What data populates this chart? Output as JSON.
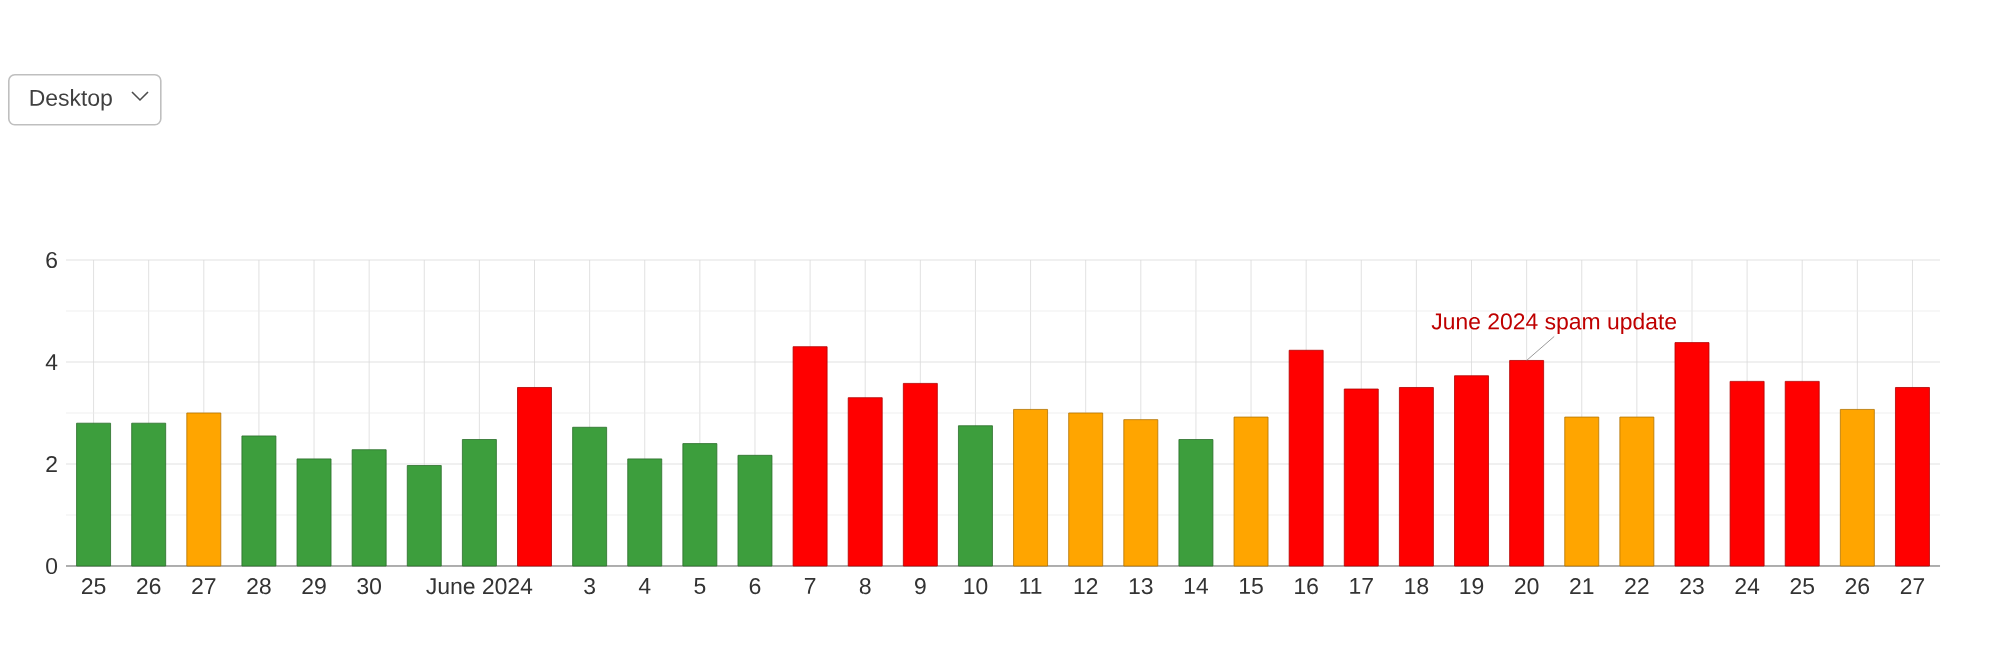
{
  "chart_data": {
    "type": "bar",
    "categories": [
      "25",
      "26",
      "27",
      "28",
      "29",
      "30",
      null,
      "June 2024",
      null,
      "3",
      "4",
      "5",
      "6",
      "7",
      "8",
      "9",
      "10",
      "11",
      "12",
      "13",
      "14",
      "15",
      "16",
      "17",
      "18",
      "19",
      "20",
      "21",
      "22",
      "23",
      "24",
      "25",
      "26",
      "27"
    ],
    "values": [
      2.8,
      2.8,
      3.0,
      2.55,
      2.1,
      2.28,
      1.97,
      2.48,
      3.5,
      2.72,
      2.1,
      2.4,
      2.17,
      4.3,
      3.3,
      3.58,
      2.75,
      3.07,
      3.0,
      2.87,
      2.48,
      2.92,
      4.23,
      3.47,
      3.5,
      3.73,
      4.03,
      2.92,
      2.92,
      4.38,
      3.62,
      3.62,
      3.07,
      3.5
    ],
    "colors": [
      "#3d9e3d",
      "#3d9e3d",
      "#ffa500",
      "#3d9e3d",
      "#3d9e3d",
      "#3d9e3d",
      "#3d9e3d",
      "#3d9e3d",
      "#ff0000",
      "#3d9e3d",
      "#3d9e3d",
      "#3d9e3d",
      "#3d9e3d",
      "#ff0000",
      "#ff0000",
      "#ff0000",
      "#3d9e3d",
      "#ffa500",
      "#ffa500",
      "#ffa500",
      "#3d9e3d",
      "#ffa500",
      "#ff0000",
      "#ff0000",
      "#ff0000",
      "#ff0000",
      "#ff0000",
      "#ffa500",
      "#ffa500",
      "#ff0000",
      "#ff0000",
      "#ff0000",
      "#ffa500",
      "#ff0000"
    ],
    "ylim": [
      0,
      6
    ],
    "yticks": [
      0,
      2,
      4,
      6
    ],
    "grid": true,
    "annotations": [
      {
        "text": "June 2024 spam update",
        "x": "20",
        "y": 4.03
      },
      "Desktop"
    ]
  }
}
